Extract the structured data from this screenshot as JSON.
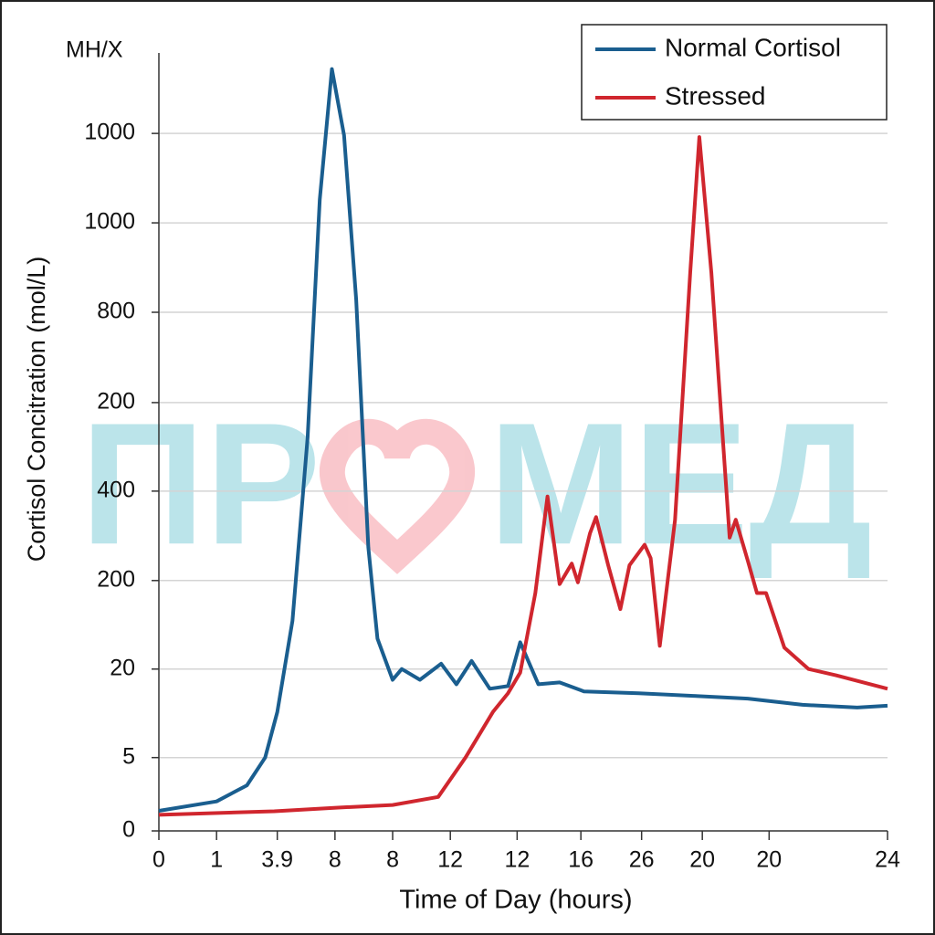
{
  "chart_data": {
    "type": "line",
    "watermark_left": "ПР",
    "watermark_right": "МЕД",
    "y_unit_label": "MH/X",
    "ylabel": "Cortisol Concitration (mol/L)",
    "xlabel": "Time of Day (hours)",
    "xlim": [
      0,
      24
    ],
    "ylim": [
      0,
      870
    ],
    "xticks": [
      0,
      {
        "value": 1.9,
        "label": "1"
      },
      3.9,
      {
        "value": 5.8,
        "label": "8"
      },
      {
        "value": 7.7,
        "label": "8"
      },
      {
        "value": 9.6,
        "label": "12"
      },
      {
        "value": 11.8,
        "label": "12"
      },
      {
        "value": 13.9,
        "label": "16"
      },
      {
        "value": 15.9,
        "label": "26"
      },
      {
        "value": 17.9,
        "label": "20"
      },
      {
        "value": 20.1,
        "label": "20"
      },
      24
    ],
    "yticks": [
      0,
      {
        "value": 82,
        "label": "5"
      },
      {
        "value": 181,
        "label": "20"
      },
      {
        "value": 280,
        "label": "200"
      },
      {
        "value": 380,
        "label": "400"
      },
      {
        "value": 479,
        "label": "200"
      },
      {
        "value": 580,
        "label": "800"
      },
      {
        "value": 680,
        "label": "1000"
      },
      {
        "value": 780,
        "label": "1000"
      }
    ],
    "grid": true,
    "legend": "upper right",
    "series": [
      {
        "name": "Normal Cortisol",
        "color": "#1a5e8f",
        "x": [
          0,
          1.9,
          2.9,
          3.5,
          3.9,
          4.4,
          4.9,
          5.3,
          5.7,
          6.1,
          6.5,
          6.9,
          7.2,
          7.7,
          8.0,
          8.6,
          9.3,
          9.8,
          10.3,
          10.9,
          11.5,
          11.9,
          12.5,
          13.2,
          14.0,
          15.8,
          17.6,
          19.4,
          21.2,
          23.0,
          24
        ],
        "values": [
          22.5,
          33,
          51,
          82,
          133,
          235,
          440,
          706,
          852,
          778,
          594,
          317,
          215,
          169,
          181,
          169,
          187,
          164,
          190,
          159,
          162,
          211,
          164,
          166,
          156,
          154,
          151,
          148,
          141,
          138,
          140
        ]
      },
      {
        "name": "Stressed",
        "color": "#d0262e",
        "x": [
          0,
          3.8,
          5.9,
          7.7,
          9.2,
          10.1,
          11.0,
          11.5,
          11.9,
          12.4,
          12.8,
          13.2,
          13.6,
          13.8,
          14.2,
          14.4,
          14.8,
          15.2,
          15.5,
          16.0,
          16.2,
          16.5,
          17.0,
          17.5,
          17.8,
          18.2,
          18.8,
          19.0,
          19.4,
          19.7,
          20.0,
          20.6,
          21.4,
          22.3,
          24
        ],
        "values": [
          18,
          22,
          26,
          29,
          38,
          82,
          133,
          154,
          177,
          266,
          374,
          276,
          299,
          278,
          333,
          351,
          297,
          248,
          297,
          320,
          305,
          207,
          348,
          624,
          776,
          624,
          328,
          348,
          302,
          266,
          266,
          205,
          181,
          174,
          159
        ]
      }
    ]
  }
}
